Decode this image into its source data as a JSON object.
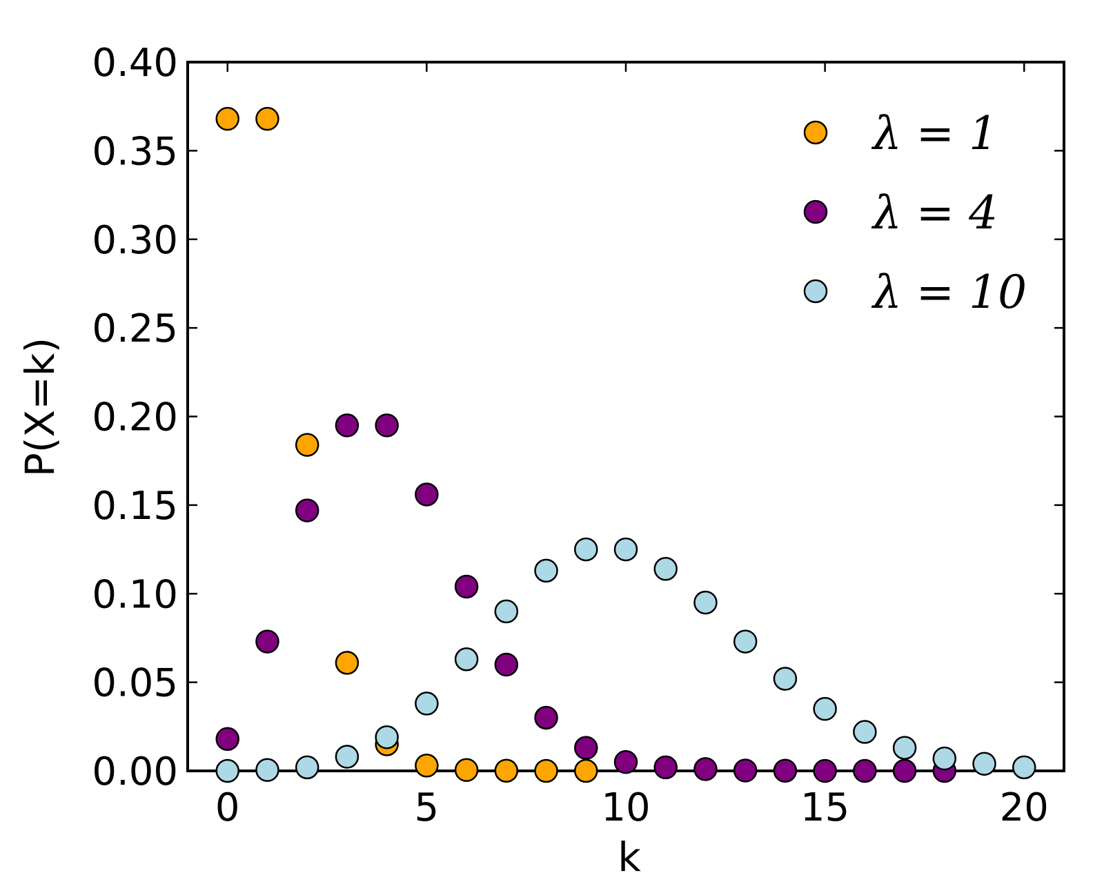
{
  "chart_data": {
    "type": "scatter",
    "title": "",
    "xlabel": "k",
    "ylabel": "P(X=k)",
    "xlim": [
      -1,
      21
    ],
    "ylim": [
      0,
      0.4
    ],
    "x_ticks": [
      0,
      5,
      10,
      15,
      20
    ],
    "x_tick_labels": [
      "0",
      "5",
      "10",
      "15",
      "20"
    ],
    "y_ticks": [
      0,
      0.05,
      0.1,
      0.15,
      0.2,
      0.25,
      0.3,
      0.35,
      0.4
    ],
    "y_tick_labels": [
      "0.00",
      "0.05",
      "0.10",
      "0.15",
      "0.20",
      "0.25",
      "0.30",
      "0.35",
      "0.40"
    ],
    "grid": false,
    "legend_position": "top-right",
    "series": [
      {
        "name": "λ = 1",
        "color": "#FFA500",
        "x": [
          0,
          1,
          2,
          3,
          4,
          5,
          6,
          7,
          8,
          9
        ],
        "y": [
          0.368,
          0.368,
          0.184,
          0.061,
          0.015,
          0.003,
          0.0005,
          0.0001,
          0.0,
          0.0
        ]
      },
      {
        "name": "λ = 4",
        "color": "#800080",
        "x": [
          0,
          1,
          2,
          3,
          4,
          5,
          6,
          7,
          8,
          9,
          10,
          11,
          12,
          13,
          14,
          15,
          16,
          17,
          18
        ],
        "y": [
          0.018,
          0.073,
          0.147,
          0.195,
          0.195,
          0.156,
          0.104,
          0.06,
          0.03,
          0.013,
          0.005,
          0.002,
          0.001,
          0.0002,
          0.0001,
          0.0,
          0.0,
          0.0,
          0.0
        ]
      },
      {
        "name": "λ = 10",
        "color": "#ADD8E6",
        "x": [
          0,
          1,
          2,
          3,
          4,
          5,
          6,
          7,
          8,
          9,
          10,
          11,
          12,
          13,
          14,
          15,
          16,
          17,
          18,
          19,
          20
        ],
        "y": [
          0.0,
          0.0005,
          0.002,
          0.008,
          0.019,
          0.038,
          0.063,
          0.09,
          0.113,
          0.125,
          0.125,
          0.114,
          0.095,
          0.073,
          0.052,
          0.035,
          0.022,
          0.013,
          0.007,
          0.004,
          0.002
        ]
      }
    ]
  }
}
